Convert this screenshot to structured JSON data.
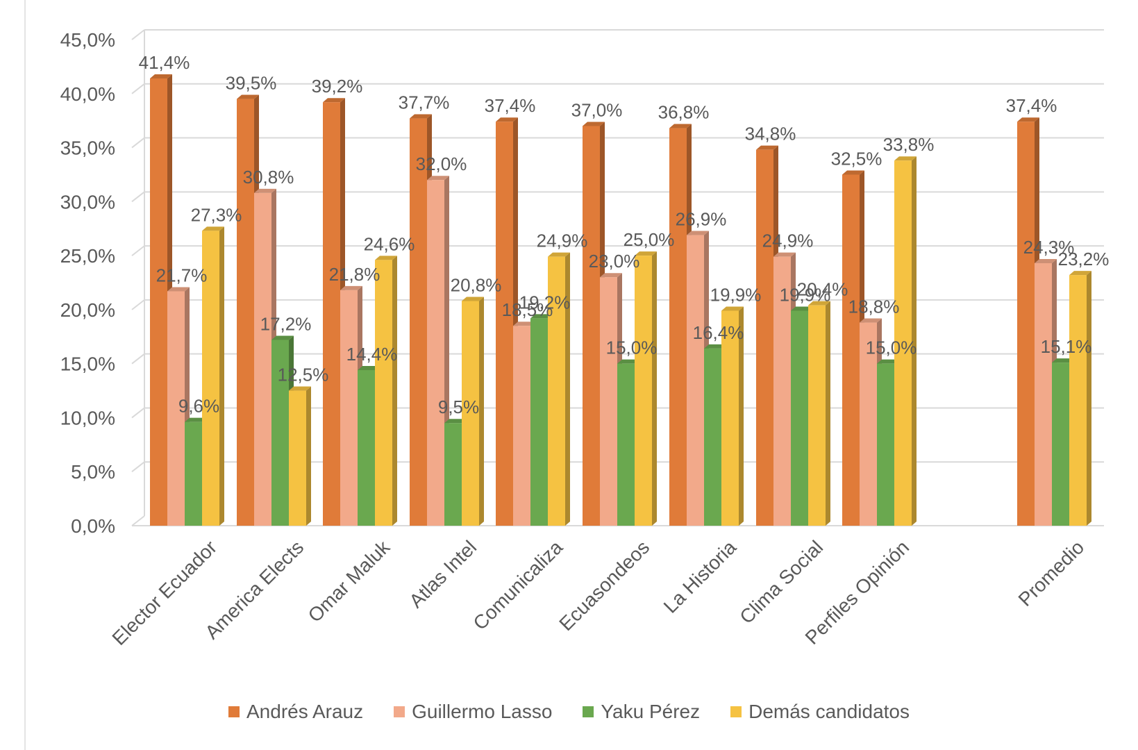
{
  "chart_data": {
    "type": "bar",
    "categories": [
      "Elector Ecuador",
      "America Elects",
      "Omar Maluk",
      "Atlas Intel",
      "Comunicaliza",
      "Ecuasondeos",
      "La Historia",
      "Clima Social",
      "Perfiles Opinión",
      "Promedio"
    ],
    "series": [
      {
        "name": "Andrés Arauz",
        "color": "#e07b39",
        "values": [
          41.4,
          39.5,
          39.2,
          37.7,
          37.4,
          37.0,
          36.8,
          34.8,
          32.5,
          37.4
        ],
        "labels": [
          "41,4%",
          "39,5%",
          "39,2%",
          "37,7%",
          "37,4%",
          "37,0%",
          "36,8%",
          "34,8%",
          "32,5%",
          "37,4%"
        ]
      },
      {
        "name": "Guillermo Lasso",
        "color": "#f2a98a",
        "values": [
          21.7,
          30.8,
          21.8,
          32.0,
          18.5,
          23.0,
          26.9,
          24.9,
          18.8,
          24.3
        ],
        "labels": [
          "21,7%",
          "30,8%",
          "21,8%",
          "32,0%",
          "18,5%",
          "23,0%",
          "26,9%",
          "24,9%",
          "18,8%",
          "24,3%"
        ]
      },
      {
        "name": "Yaku Pérez",
        "color": "#6aa84f",
        "values": [
          9.6,
          17.2,
          14.4,
          9.5,
          19.2,
          15.0,
          16.4,
          19.9,
          15.0,
          15.1
        ],
        "labels": [
          "9,6%",
          "17,2%",
          "14,4%",
          "9,5%",
          "19,2%",
          "15,0%",
          "16,4%",
          "19,9%",
          "15,0%",
          "15,1%"
        ]
      },
      {
        "name": "Demás candidatos",
        "color": "#f5c242",
        "values": [
          27.3,
          12.5,
          24.6,
          20.8,
          24.9,
          25.0,
          19.9,
          20.4,
          33.8,
          23.2
        ],
        "labels": [
          "27,3%",
          "12,5%",
          "24,6%",
          "20,8%",
          "24,9%",
          "25,0%",
          "19,9%",
          "20,4%",
          "33,8%",
          "23,2%"
        ]
      }
    ],
    "y_ticks": [
      "0,0%",
      "5,0%",
      "10,0%",
      "15,0%",
      "20,0%",
      "25,0%",
      "30,0%",
      "35,0%",
      "40,0%",
      "45,0%"
    ],
    "ylim": [
      0,
      45
    ],
    "title": "",
    "xlabel": "",
    "ylabel": "",
    "grid": true,
    "legend_position": "bottom"
  }
}
